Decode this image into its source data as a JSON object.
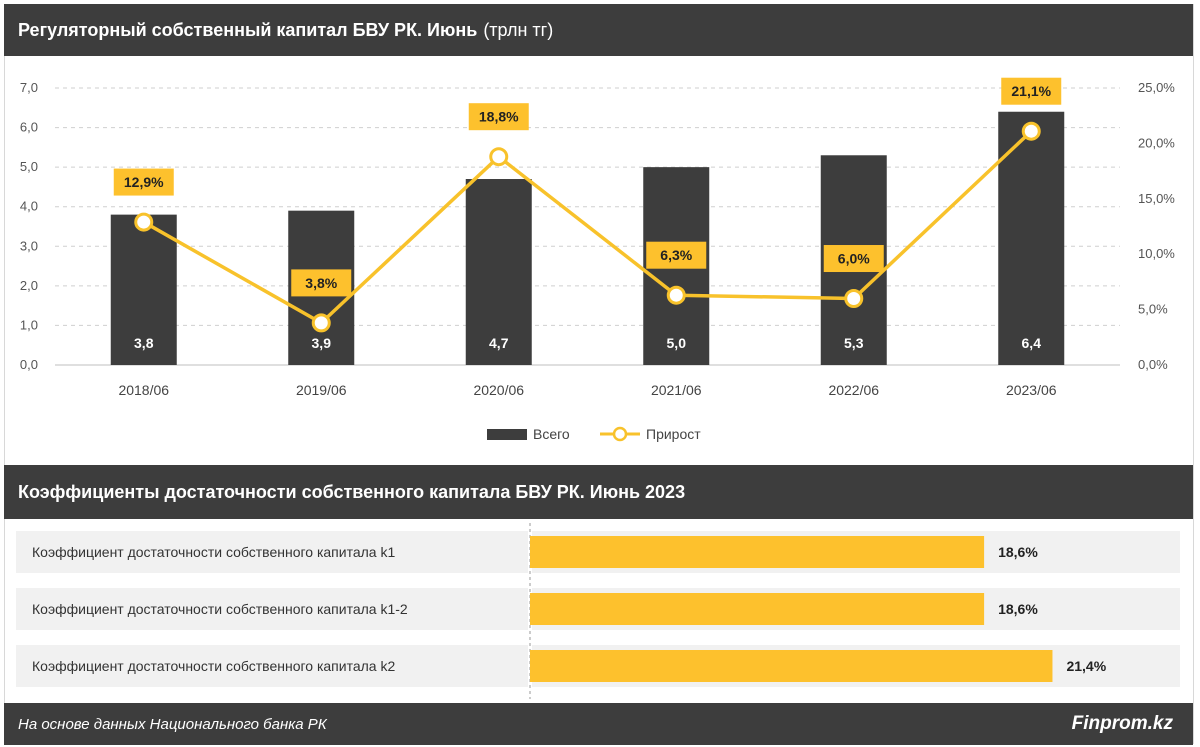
{
  "header": {
    "title_bold": "Регуляторный собственный капитал БВУ РК. Июнь",
    "title_unit": "(трлн тг)"
  },
  "section2": {
    "title": "Коэффициенты достаточности собственного капитала БВУ РК. Июнь 2023"
  },
  "footer": {
    "source": "На основе данных Национального банка РК",
    "brand": "Finprom.kz"
  },
  "colors": {
    "bar": "#3d3d3d",
    "line": "#f8c22b",
    "accent": "#fdc12d",
    "row_bg": "#f1f1f1",
    "grid": "#cfcfcf"
  },
  "chart_data": [
    {
      "type": "bar",
      "categories": [
        "2018/06",
        "2019/06",
        "2020/06",
        "2021/06",
        "2022/06",
        "2023/06"
      ],
      "series": [
        {
          "name": "Всего",
          "type": "bar",
          "axis": "left",
          "values": [
            3.8,
            3.9,
            4.7,
            5.0,
            5.3,
            6.4
          ],
          "labels": [
            "3,8",
            "3,9",
            "4,7",
            "5,0",
            "5,3",
            "6,4"
          ]
        },
        {
          "name": "Прирост",
          "type": "line",
          "axis": "right",
          "values": [
            12.9,
            3.8,
            18.8,
            6.3,
            6.0,
            21.1
          ],
          "labels": [
            "12,9%",
            "3,8%",
            "18,8%",
            "6,3%",
            "6,0%",
            "21,1%"
          ]
        }
      ],
      "ylim_left": [
        0,
        7
      ],
      "yticks_left": [
        "0,0",
        "1,0",
        "2,0",
        "3,0",
        "4,0",
        "5,0",
        "6,0",
        "7,0"
      ],
      "ylim_right": [
        0,
        25
      ],
      "yticks_right": [
        "0,0%",
        "5,0%",
        "10,0%",
        "15,0%",
        "20,0%",
        "25,0%"
      ],
      "grid": true,
      "legend_position": "bottom"
    },
    {
      "type": "bar",
      "orientation": "horizontal",
      "categories": [
        "Коэффициент достаточности собственного капитала k1",
        "Коэффициент достаточности собственного капитала k1-2",
        "Коэффициент достаточности собственного капитала k2"
      ],
      "values": [
        18.6,
        18.6,
        21.4
      ],
      "labels": [
        "18,6%",
        "18,6%",
        "21,4%"
      ],
      "xlim": [
        0,
        22.2
      ]
    }
  ]
}
